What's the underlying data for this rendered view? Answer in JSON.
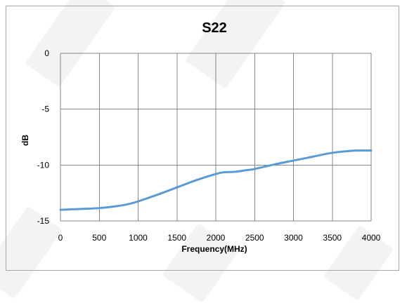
{
  "colors": {
    "series": "#5b9bd5",
    "grid": "#868686",
    "frame": "#a6a6a6",
    "watermark": "#e9e9e9"
  },
  "chart_data": {
    "type": "line",
    "title": "S22",
    "xlabel": "Frequency(MHz)",
    "ylabel": "dB",
    "xlim": [
      0,
      4000
    ],
    "ylim": [
      -15,
      0
    ],
    "xticks": [
      0,
      500,
      1000,
      1500,
      2000,
      2500,
      3000,
      3500,
      4000
    ],
    "yticks": [
      0,
      -5,
      -10,
      -15
    ],
    "grid": true,
    "legend": "none",
    "series": [
      {
        "x": [
          0,
          250,
          500,
          750,
          900,
          1000,
          1250,
          1500,
          1750,
          2000,
          2100,
          2250,
          2400,
          2500,
          2750,
          3000,
          3250,
          3500,
          3750,
          4000
        ],
        "y": [
          -14.0,
          -13.93,
          -13.85,
          -13.65,
          -13.45,
          -13.25,
          -12.65,
          -12.0,
          -11.35,
          -10.8,
          -10.65,
          -10.6,
          -10.45,
          -10.35,
          -9.95,
          -9.6,
          -9.25,
          -8.9,
          -8.72,
          -8.7
        ]
      }
    ]
  }
}
